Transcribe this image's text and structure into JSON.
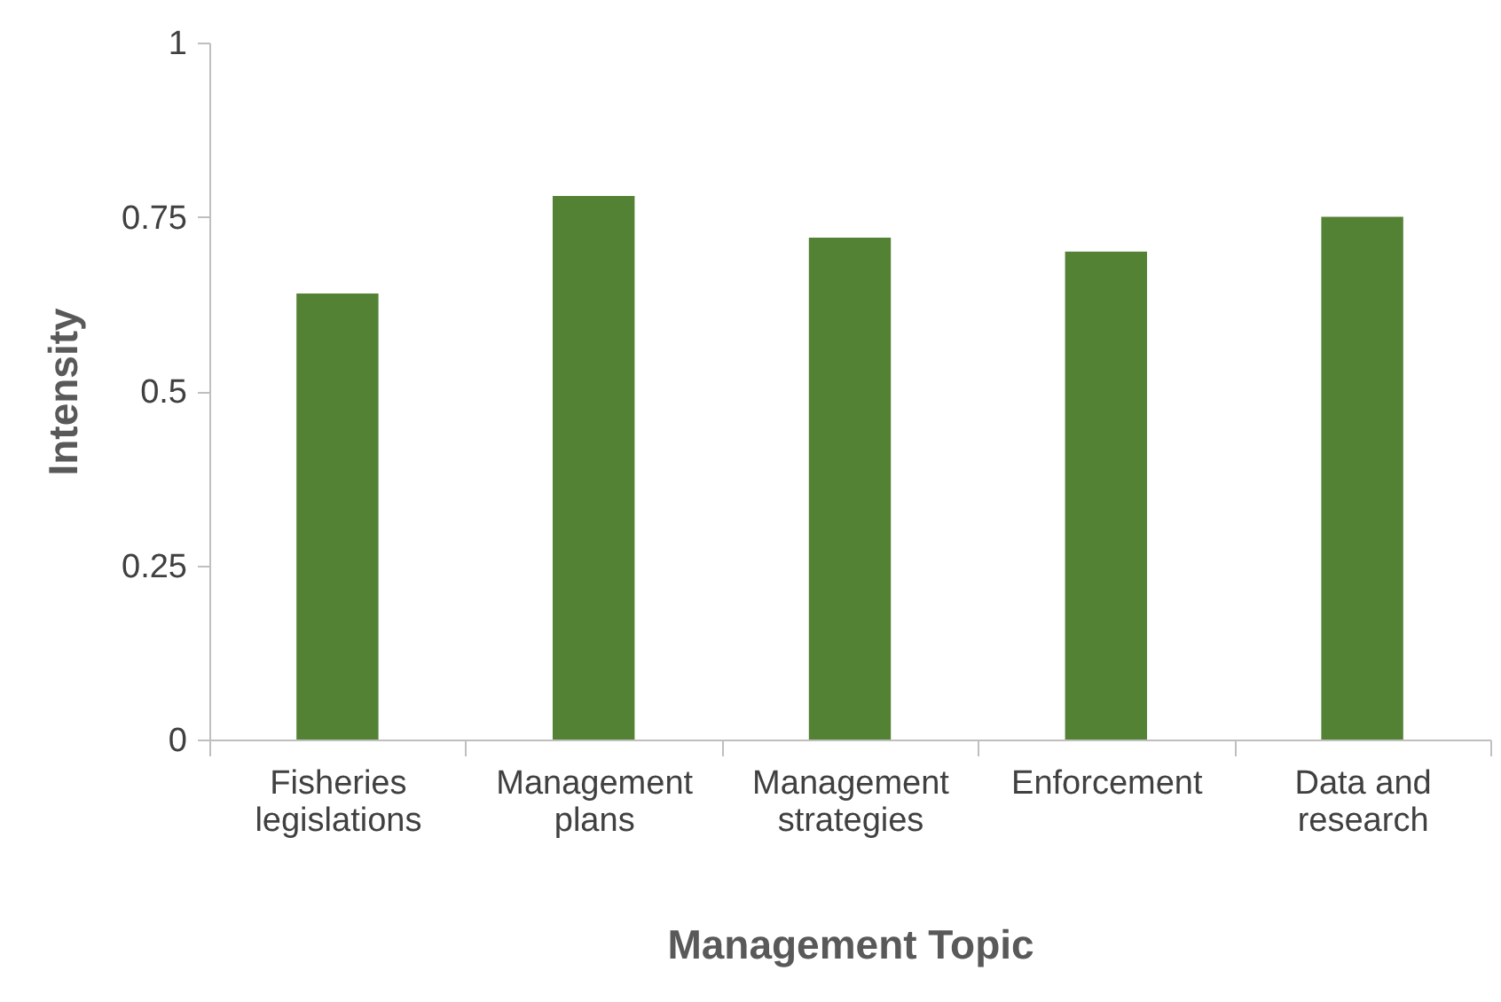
{
  "chart_data": {
    "type": "bar",
    "xlabel": "Management Topic",
    "ylabel": "Intensity",
    "categories": [
      "Fisheries legislations",
      "Management plans",
      "Management strategies",
      "Enforcement",
      "Data and research"
    ],
    "values": [
      0.64,
      0.78,
      0.72,
      0.7,
      0.75
    ],
    "color": "#548235",
    "ylim": [
      0,
      1
    ],
    "yticks": [
      0,
      0.25,
      0.5,
      0.75,
      1
    ],
    "grid": false
  }
}
